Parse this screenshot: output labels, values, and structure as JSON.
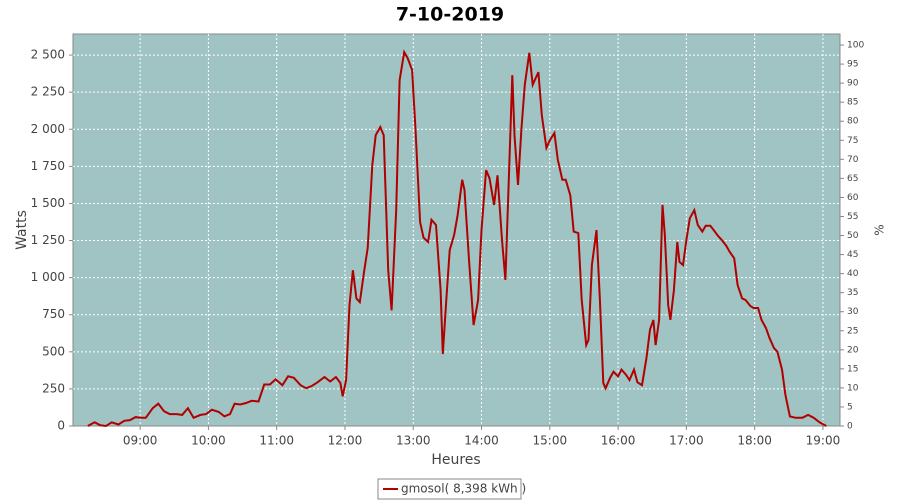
{
  "chart_data": {
    "type": "line",
    "title": "7-10-2019",
    "x_label": "Heures",
    "y_label": "Watts",
    "y2_label": "%",
    "x": [
      "08:14",
      "08:20",
      "08:25",
      "08:30",
      "08:35",
      "08:41",
      "08:46",
      "08:51",
      "08:56",
      "09:00",
      "09:05",
      "09:11",
      "09:16",
      "09:21",
      "09:26",
      "09:32",
      "09:37",
      "09:42",
      "09:47",
      "09:53",
      "09:58",
      "10:03",
      "10:09",
      "10:14",
      "10:19",
      "10:23",
      "10:28",
      "10:33",
      "10:38",
      "10:44",
      "10:49",
      "10:54",
      "10:59",
      "11:05",
      "11:10",
      "11:15",
      "11:21",
      "11:26",
      "11:31",
      "11:36",
      "11:42",
      "11:47",
      "11:52",
      "11:56",
      "11:58",
      "12:01",
      "12:04",
      "12:07",
      "12:10",
      "12:13",
      "12:17",
      "12:20",
      "12:24",
      "12:27",
      "12:31",
      "12:34",
      "12:38",
      "12:41",
      "12:45",
      "12:48",
      "12:52",
      "12:55",
      "12:59",
      "13:02",
      "13:06",
      "13:09",
      "13:13",
      "13:16",
      "13:20",
      "13:24",
      "13:26",
      "13:29",
      "13:32",
      "13:36",
      "13:39",
      "13:43",
      "13:45",
      "13:49",
      "13:53",
      "13:57",
      "14:00",
      "14:04",
      "14:07",
      "14:11",
      "14:14",
      "14:18",
      "14:21",
      "14:24",
      "14:27",
      "14:29",
      "14:32",
      "14:35",
      "14:38",
      "14:42",
      "14:45",
      "14:50",
      "14:53",
      "14:57",
      "15:00",
      "15:04",
      "15:07",
      "15:11",
      "15:14",
      "15:18",
      "15:21",
      "15:25",
      "15:28",
      "15:32",
      "15:34",
      "15:37",
      "15:41",
      "15:44",
      "15:47",
      "15:49",
      "15:53",
      "15:56",
      "16:00",
      "16:03",
      "16:07",
      "16:10",
      "16:14",
      "16:17",
      "16:21",
      "16:25",
      "16:28",
      "16:31",
      "16:33",
      "16:36",
      "16:39",
      "16:41",
      "16:44",
      "16:46",
      "16:49",
      "16:52",
      "16:54",
      "16:57",
      "17:00",
      "17:03",
      "17:07",
      "17:10",
      "17:14",
      "17:17",
      "17:21",
      "17:24",
      "17:28",
      "17:31",
      "17:35",
      "17:38",
      "17:42",
      "17:45",
      "17:49",
      "17:52",
      "17:56",
      "17:59",
      "18:03",
      "18:06",
      "18:10",
      "18:13",
      "18:17",
      "18:20",
      "18:24",
      "18:27",
      "18:31",
      "18:36",
      "18:42",
      "18:47",
      "18:52",
      "18:57",
      "19:03"
    ],
    "series": [
      {
        "name": "gmosol( 8,398 kWh )",
        "color": "#b00000",
        "values": [
          0,
          25,
          5,
          0,
          25,
          10,
          35,
          40,
          60,
          55,
          55,
          120,
          150,
          100,
          80,
          80,
          75,
          120,
          55,
          75,
          80,
          110,
          95,
          65,
          80,
          150,
          145,
          155,
          170,
          165,
          280,
          280,
          315,
          275,
          335,
          325,
          275,
          255,
          270,
          295,
          330,
          300,
          330,
          290,
          200,
          310,
          815,
          1050,
          860,
          835,
          1050,
          1200,
          1760,
          1960,
          2015,
          1960,
          1050,
          780,
          1455,
          2330,
          2520,
          2480,
          2400,
          2000,
          1375,
          1270,
          1240,
          1390,
          1355,
          915,
          485,
          850,
          1185,
          1290,
          1420,
          1660,
          1590,
          1120,
          680,
          850,
          1320,
          1725,
          1670,
          1490,
          1690,
          1255,
          985,
          1660,
          2365,
          1960,
          1625,
          2000,
          2300,
          2515,
          2300,
          2385,
          2095,
          1875,
          1925,
          1975,
          1795,
          1660,
          1660,
          1555,
          1310,
          1300,
          850,
          545,
          580,
          1085,
          1320,
          850,
          290,
          255,
          325,
          365,
          335,
          380,
          345,
          310,
          380,
          295,
          275,
          460,
          650,
          715,
          545,
          715,
          1490,
          1290,
          815,
          715,
          915,
          1240,
          1105,
          1085,
          1255,
          1400,
          1455,
          1355,
          1310,
          1350,
          1350,
          1320,
          1280,
          1255,
          1215,
          1175,
          1130,
          950,
          860,
          850,
          810,
          795,
          795,
          715,
          660,
          595,
          525,
          500,
          380,
          210,
          65,
          55,
          55,
          75,
          55,
          25,
          0
        ]
      }
    ],
    "xlim": [
      "08:01",
      "19:15"
    ],
    "xticks": [
      "09:00",
      "10:00",
      "11:00",
      "12:00",
      "13:00",
      "14:00",
      "15:00",
      "16:00",
      "17:00",
      "18:00",
      "19:00"
    ],
    "ylim": [
      0,
      2642
    ],
    "yticks": [
      0,
      250,
      500,
      750,
      {
        "value": 1000,
        "label": "1 000"
      },
      {
        "value": 1250,
        "label": "1 250"
      },
      {
        "value": 1500,
        "label": "1 500"
      },
      {
        "value": 1750,
        "label": "1 750"
      },
      {
        "value": 2000,
        "label": "2 000"
      },
      {
        "value": 2250,
        "label": "2 250"
      },
      {
        "value": 2500,
        "label": "2 500"
      }
    ],
    "y2lim": [
      0,
      102.9
    ],
    "y2ticks": [
      0,
      5,
      10,
      15,
      20,
      25,
      30,
      35,
      40,
      45,
      50,
      55,
      60,
      65,
      70,
      75,
      80,
      85,
      90,
      95,
      100
    ],
    "grid": true,
    "legend": "bottom"
  }
}
